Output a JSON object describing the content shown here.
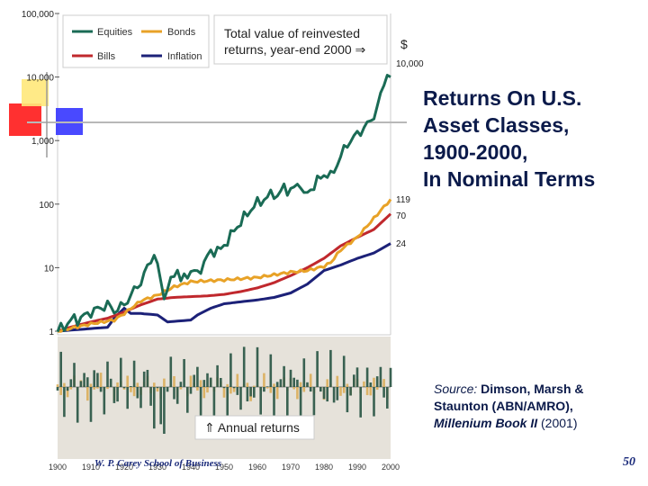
{
  "colors": {
    "equities": "#1a6b55",
    "bonds": "#e8a227",
    "bills": "#c0282d",
    "inflation": "#1c2178",
    "title": "#0b1a4a",
    "annual_equities": "#2f5a4a",
    "annual_bonds": "#d9a84a",
    "deco_red": "#ff1a1a",
    "deco_yellow": "#ffe25a",
    "deco_blue": "#2020ff"
  },
  "title": {
    "line1": "Returns On U.S.",
    "line2": "Asset Classes,",
    "line3": "1900-2000,",
    "line4": "In Nominal Terms"
  },
  "source": {
    "prefix": "Source:",
    "authors1": " Dimson, Marsh &",
    "authors2": "Staunton (ABN/AMRO),",
    "book": "Millenium Book II",
    "year": " (2001)"
  },
  "footer": {
    "school": "W. P. Carey School of Business",
    "slide_number": "50"
  },
  "chart_data": {
    "type": "line",
    "title": "",
    "xlabel": "",
    "ylabel": "",
    "y_scale": "log",
    "ylim": [
      1,
      100000
    ],
    "y_tick_labels": [
      "100,000",
      "10,000",
      "1,000",
      "100",
      "10",
      "1"
    ],
    "y_tick_values": [
      100000,
      10000,
      1000,
      100,
      10,
      1
    ],
    "xlim": [
      1900,
      2000
    ],
    "x_tick_labels": [
      "1900",
      "1910",
      "1920",
      "1930",
      "1940",
      "1950",
      "1960",
      "1970",
      "1980",
      "1990",
      "2000"
    ],
    "x_tick_values": [
      1900,
      1910,
      1920,
      1930,
      1940,
      1950,
      1960,
      1970,
      1980,
      1990,
      2000
    ],
    "legend": {
      "placement": "top-left",
      "entries": [
        {
          "label": "Equities",
          "color": "#1a6b55"
        },
        {
          "label": "Bonds",
          "color": "#e8a227"
        },
        {
          "label": "Bills",
          "color": "#c0282d"
        },
        {
          "label": "Inflation",
          "color": "#1c2178"
        }
      ]
    },
    "annotation_total": "Total value of reinvested returns, year-end 2000",
    "annotation_arrow": "⇒",
    "currency_label": "$",
    "end_labels": [
      "10,000",
      "119",
      "70",
      "24"
    ],
    "annual_label": "⇑ Annual returns",
    "series": [
      {
        "name": "Equities",
        "x": [
          1900,
          1905,
          1906,
          1910,
          1915,
          1917,
          1920,
          1922,
          1925,
          1929,
          1931,
          1932,
          1936,
          1937,
          1940,
          1942,
          1946,
          1949,
          1954,
          1959,
          1965,
          1966,
          1968,
          1970,
          1973,
          1974,
          1980,
          1982,
          1987,
          1988,
          1994,
          1996,
          1999,
          2000
        ],
        "y": [
          1.0,
          1.6,
          1.5,
          2.0,
          2.6,
          2.1,
          2.6,
          3.7,
          6.0,
          17,
          6,
          3.6,
          10,
          6,
          9,
          8,
          18,
          19,
          45,
          95,
          150,
          130,
          185,
          160,
          220,
          130,
          300,
          270,
          900,
          1000,
          2000,
          3300,
          12000,
          10000
        ]
      },
      {
        "name": "Bonds",
        "x": [
          1900,
          1910,
          1917,
          1920,
          1925,
          1930,
          1935,
          1940,
          1950,
          1960,
          1970,
          1975,
          1980,
          1982,
          1985,
          1990,
          1995,
          2000
        ],
        "y": [
          1.0,
          1.3,
          1.5,
          1.9,
          3.0,
          3.7,
          5.0,
          6.0,
          6.4,
          7.0,
          8.5,
          9,
          10.5,
          12,
          19,
          30,
          60,
          119
        ]
      },
      {
        "name": "Bills",
        "x": [
          1900,
          1905,
          1910,
          1915,
          1920,
          1925,
          1930,
          1935,
          1940,
          1945,
          1950,
          1955,
          1960,
          1965,
          1970,
          1975,
          1980,
          1985,
          1990,
          1995,
          2000
        ],
        "y": [
          1.0,
          1.2,
          1.4,
          1.6,
          2.0,
          2.6,
          3.2,
          3.4,
          3.5,
          3.6,
          3.8,
          4.2,
          4.8,
          5.8,
          7.5,
          10,
          14,
          22,
          30,
          40,
          70
        ]
      },
      {
        "name": "Inflation",
        "x": [
          1900,
          1910,
          1915,
          1917,
          1920,
          1922,
          1925,
          1930,
          1933,
          1940,
          1942,
          1946,
          1950,
          1955,
          1960,
          1965,
          1970,
          1975,
          1980,
          1985,
          1990,
          1995,
          2000
        ],
        "y": [
          1.0,
          1.1,
          1.15,
          1.6,
          2.3,
          1.9,
          1.9,
          1.8,
          1.4,
          1.5,
          1.8,
          2.3,
          2.7,
          2.9,
          3.1,
          3.4,
          4.0,
          5.5,
          9,
          11,
          14,
          17,
          24
        ]
      }
    ]
  }
}
